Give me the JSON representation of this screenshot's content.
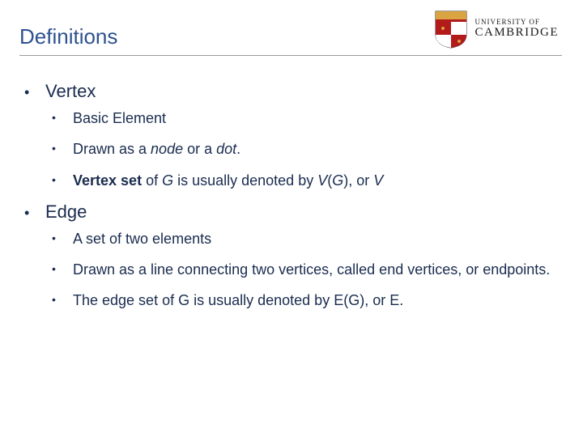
{
  "title": "Definitions",
  "logo": {
    "top": "UNIVERSITY OF",
    "bottom": "CAMBRIDGE",
    "shield_red": "#b31b1b",
    "shield_gold": "#d9a441"
  },
  "colors": {
    "title": "#2e5190",
    "text": "#1a2c4f"
  },
  "items": [
    {
      "label": "Vertex",
      "sub": [
        [
          {
            "t": "Basic Element"
          }
        ],
        [
          {
            "t": "Drawn as a "
          },
          {
            "t": "node",
            "style": "italic"
          },
          {
            "t": " or a "
          },
          {
            "t": "dot",
            "style": "italic"
          },
          {
            "t": "."
          }
        ],
        [
          {
            "t": "Vertex set",
            "style": "bold"
          },
          {
            "t": " of "
          },
          {
            "t": "G",
            "style": "italic"
          },
          {
            "t": " is usually denoted by "
          },
          {
            "t": "V",
            "style": "italic"
          },
          {
            "t": "("
          },
          {
            "t": "G",
            "style": "italic"
          },
          {
            "t": "), or "
          },
          {
            "t": "V",
            "style": "italic"
          }
        ]
      ]
    },
    {
      "label": "Edge",
      "sub": [
        [
          {
            "t": "A set of two elements"
          }
        ],
        [
          {
            "t": "Drawn as a line connecting two vertices, called end vertices, or endpoints."
          }
        ],
        [
          {
            "t": "The edge set of G is usually denoted by E(G), or E."
          }
        ]
      ]
    }
  ]
}
